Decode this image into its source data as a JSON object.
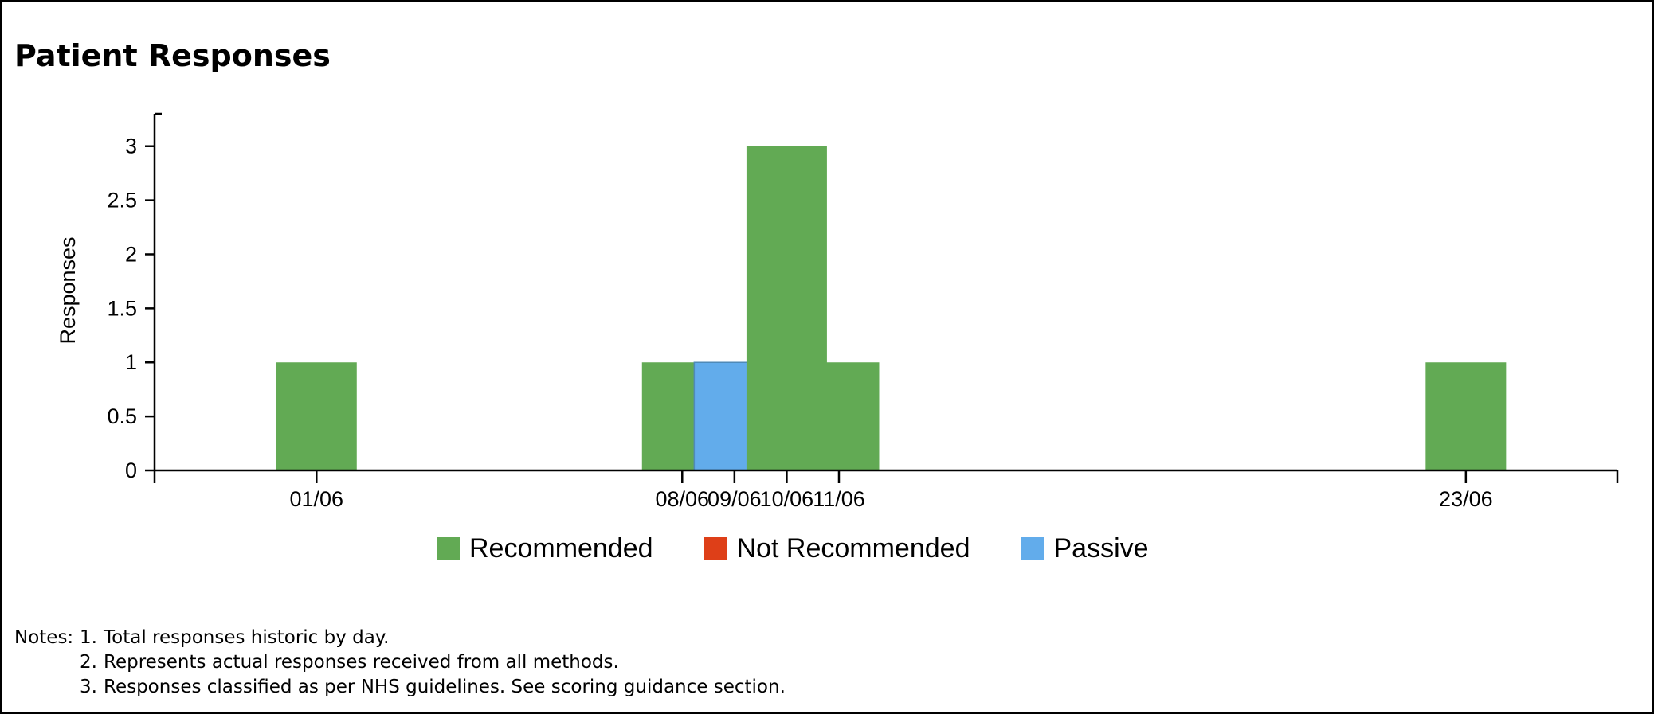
{
  "chart_data": {
    "type": "bar",
    "stacked": true,
    "title": "Patient Responses",
    "ylabel": "Responses",
    "xlabel": "",
    "ylim": [
      0,
      3.3
    ],
    "yticks": [
      0,
      0.5,
      1,
      1.5,
      2,
      2.5,
      3
    ],
    "ytick_labels": [
      "0",
      "0.5",
      "1",
      "1.5",
      "2",
      "2.5",
      "3"
    ],
    "x_axis": "date",
    "xlim": [
      "2025-05-29",
      "2025-06-26"
    ],
    "xtick_dates": [
      "2025-06-01",
      "2025-06-08",
      "2025-06-09",
      "2025-06-10",
      "2025-06-11",
      "2025-06-23"
    ],
    "xtick_labels": [
      "01/06",
      "08/06",
      "09/06",
      "10/06",
      "11/06",
      "23/06"
    ],
    "x": [
      "2025-06-01",
      "2025-06-08",
      "2025-06-09",
      "2025-06-10",
      "2025-06-11",
      "2025-06-23"
    ],
    "series": [
      {
        "name": "Recommended",
        "color": "#62aa54",
        "values": [
          1,
          1,
          0,
          3,
          1,
          1
        ]
      },
      {
        "name": "Not Recommended",
        "color": "#de3f18",
        "values": [
          0,
          0,
          0,
          0,
          0,
          0
        ]
      },
      {
        "name": "Passive",
        "color": "#62aceb",
        "values": [
          0,
          0,
          1,
          0,
          0,
          0
        ]
      }
    ],
    "grid": false,
    "legend_position": "bottom"
  },
  "notes": {
    "label": "Notes:",
    "items": [
      {
        "num": "1.",
        "text": "Total responses historic by day."
      },
      {
        "num": "2.",
        "text": "Represents actual responses received from all methods."
      },
      {
        "num": "3.",
        "text": "Responses classified as per NHS guidelines. See scoring guidance section."
      }
    ]
  }
}
